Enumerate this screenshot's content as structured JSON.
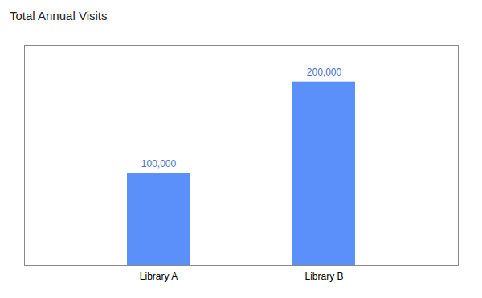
{
  "chart_data": {
    "type": "bar",
    "title": "Total Annual Visits",
    "categories": [
      "Library A",
      "Library B"
    ],
    "values": [
      100000,
      200000
    ],
    "value_labels": [
      "100,000",
      "200,000"
    ],
    "data_labels": true,
    "color": "#5B8FF9",
    "ylim": [
      0,
      240000
    ],
    "tick_labels": "x",
    "grid": false
  }
}
